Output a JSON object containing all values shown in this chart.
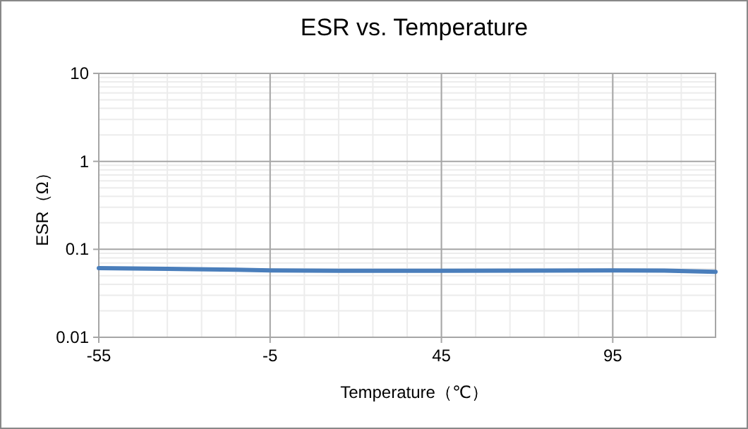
{
  "chart_data": {
    "type": "line",
    "title": "ESR vs. Temperature",
    "xlabel": "Temperature（℃）",
    "ylabel": "ESR（Ω）",
    "x": [
      -55,
      -35,
      -15,
      -5,
      15,
      45,
      75,
      95,
      110,
      125
    ],
    "series": [
      {
        "color": "#4a7ebb",
        "values": [
          0.0612,
          0.06,
          0.0585,
          0.0575,
          0.057,
          0.057,
          0.0573,
          0.0575,
          0.0572,
          0.0555
        ]
      }
    ],
    "log": "y",
    "xlim": [
      -55,
      125
    ],
    "ylim": [
      0.01,
      10
    ],
    "xticks": [
      -55,
      -5,
      45,
      95
    ],
    "yticks": [
      0.01,
      0.1,
      1,
      10
    ],
    "grid": true,
    "marker": "none",
    "line_style": "solid"
  }
}
